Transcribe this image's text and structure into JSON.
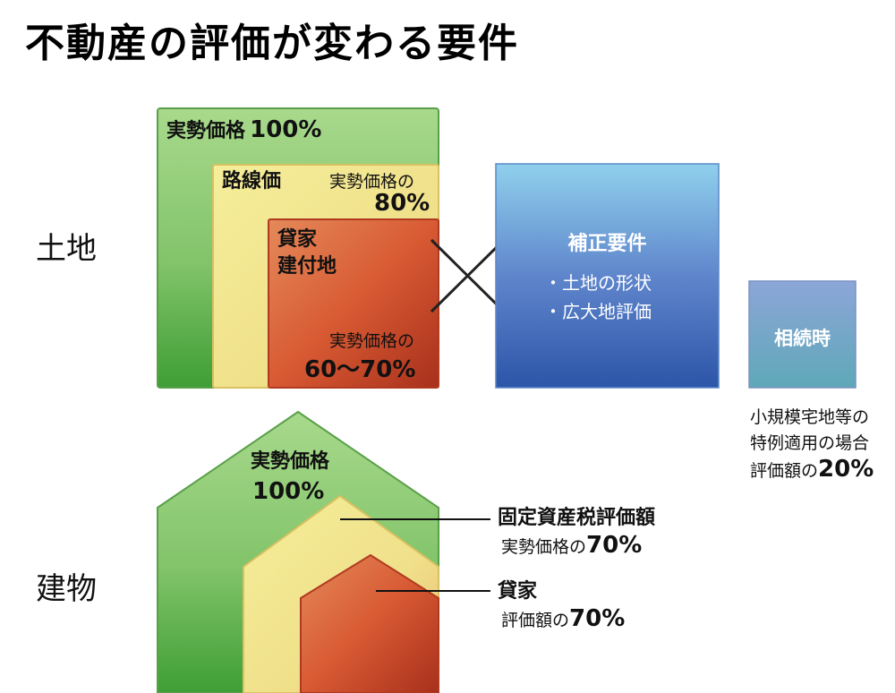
{
  "title": "不動産の評価が変わる要件",
  "land": {
    "label": "土地",
    "market": {
      "name": "実勢価格",
      "value": "100%"
    },
    "route": {
      "name": "路線価",
      "ref": "実勢価格の",
      "value": "80%"
    },
    "rented": {
      "name1": "貸家",
      "name2": "建付地",
      "ref": "実勢価格の",
      "value": "60～70%"
    },
    "correction": {
      "title": "補正要件",
      "items": [
        "・土地の形状",
        "・広大地評価"
      ]
    },
    "inheritance": {
      "box": "相続時",
      "note1": "小規模宅地等の",
      "note2": "特例適用の場合",
      "note3": "評価額の",
      "value": "20%"
    }
  },
  "building": {
    "label": "建物",
    "market": {
      "name": "実勢価格",
      "value": "100%"
    },
    "fixed_tax": {
      "name": "固定資産税評価額",
      "ref": "実勢価格の",
      "value": "70%"
    },
    "rented": {
      "name": "貸家",
      "ref": "評価額の",
      "value": "70%"
    }
  },
  "colors": {
    "green": "#6fbf5a",
    "yellow": "#eee07a",
    "red": "#d2502e",
    "blue": "#3a68b8",
    "teal": "#6a9ec2"
  }
}
